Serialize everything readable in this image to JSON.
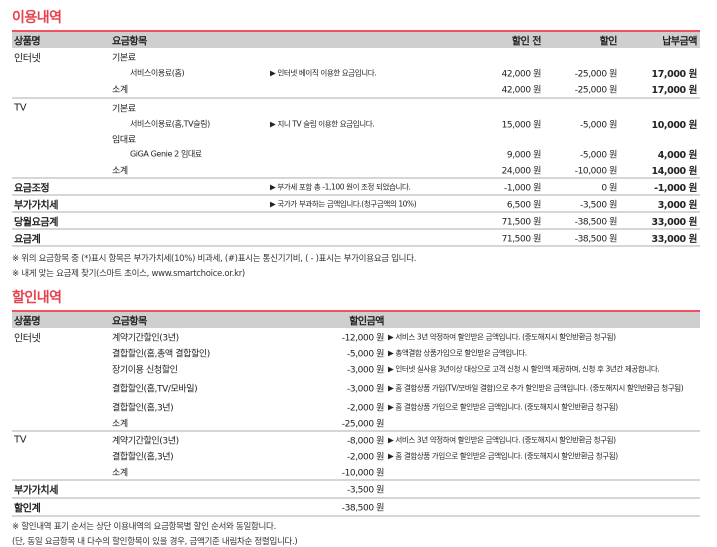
{
  "usage": {
    "title": "이용내역",
    "headers": {
      "product": "상품명",
      "item": "요금항목",
      "before": "할인 전",
      "discount": "할인",
      "pay": "납부금액"
    },
    "rows": [
      {
        "product": "인터넷",
        "item": "기본료",
        "h": 17
      },
      {
        "item": "서비스이용료(홈)",
        "indent": true,
        "desc": "▶ 인터넷 베이직 이용한 요금입니다.",
        "before": "42,000 원",
        "disc": "-25,000 원",
        "pay": "17,000 원",
        "h": 16
      },
      {
        "item": "소계",
        "before": "42,000 원",
        "disc": "-25,000 원",
        "pay": "17,000 원",
        "h": 16,
        "sep": true
      },
      {
        "product": "TV",
        "item": "기본료",
        "h": 17
      },
      {
        "item": "서비스이용료(홈,TV슬림)",
        "indent": true,
        "desc": "▶ 지니 TV 슬림 이용한 요금입니다.",
        "before": "15,000 원",
        "disc": "-5,000 원",
        "pay": "10,000 원",
        "h": 16
      },
      {
        "item": "임대료",
        "h": 14
      },
      {
        "item": "GiGA Genie 2 임대료",
        "indent": true,
        "before": "9,000 원",
        "disc": "-5,000 원",
        "pay": "4,000 원",
        "h": 16
      },
      {
        "item": "소계",
        "before": "24,000 원",
        "disc": "-10,000 원",
        "pay": "14,000 원",
        "h": 15,
        "sep": true
      },
      {
        "product": "요금조정",
        "bold": true,
        "desc": "▶ 부가세 포함 총 -1,100 원이 조정 되었습니다.",
        "before": "-1,000 원",
        "disc": "0 원",
        "pay": "-1,000 원",
        "h": 15,
        "sep": true
      },
      {
        "product": "부가가치세",
        "bold": true,
        "desc": "▶ 국가가 부과하는 금액입니다.(청구금액의 10%)",
        "before": "6,500 원",
        "disc": "-3,500 원",
        "pay": "3,000 원",
        "h": 15,
        "sep": true
      },
      {
        "product": "당월요금계",
        "bold": true,
        "before": "71,500 원",
        "disc": "-38,500 원",
        "pay": "33,000 원",
        "h": 15,
        "sep": true
      },
      {
        "product": "요금계",
        "bold": true,
        "before": "71,500 원",
        "disc": "-38,500 원",
        "pay": "33,000 원",
        "h": 15,
        "sep": true
      }
    ],
    "notes": [
      "※ 위의 요금항목 중 (*)표시 항목은 부가가치세(10%) 비과세, (#)표시는 통신기기비, ( - )표시는 부가이용요금 입니다.",
      "※ 내게 맞는 요금제 찾기(스마트 초이스, www.smartchoice.or.kr)"
    ]
  },
  "discount": {
    "title": "할인내역",
    "headers": {
      "product": "상품명",
      "item": "요금항목",
      "amount": "할인금액"
    },
    "rows": [
      {
        "product": "인터넷",
        "item": "계약기간할인(3년)",
        "amt": "-12,000 원",
        "desc": "▶ 서비스 3년 약정하여 할인받은 금액입니다. (중도해지시 할인반환금 청구됨)",
        "h": 17
      },
      {
        "item": "결합할인(홈,총액 결합할인)",
        "amt": "-5,000 원",
        "desc": "▶ 총액결합 상품가입으로 할인받은 금액입니다.",
        "h": 16
      },
      {
        "item": "장기이용 신청할인",
        "amt": "-3,000 원",
        "desc": "▶ 인터넷 실사용 3년이상 대상으로 고객 신청 시 할인액 제공하며, 신청 후 3년간 제공합니다.",
        "h": 16
      },
      {
        "item": "결합할인(홈,TV/모바일)",
        "amt": "-3,000 원",
        "desc": "▶ 홈 결합상품 가입(TV/모바일 결합)으로 추가 할인받은 금액입니다. (중도해지시 할인반환금 청구됨)",
        "h": 22
      },
      {
        "item": "결합할인(홈,3년)",
        "amt": "-2,000 원",
        "desc": "▶ 홈 결합상품 가입으로 할인받은 금액입니다. (중도해지시 할인반환금 청구됨)",
        "h": 16
      },
      {
        "item": "소계",
        "amt": "-25,000 원",
        "h": 15,
        "sep": true
      },
      {
        "product": "TV",
        "item": "계약기간할인(3년)",
        "amt": "-8,000 원",
        "desc": "▶ 서비스 3년 약정하여 할인받은 금액입니다. (중도해지시 할인반환금 청구됨)",
        "h": 16
      },
      {
        "item": "결합할인(홈,3년)",
        "amt": "-2,000 원",
        "desc": "▶ 홈 결합상품 가입으로 할인받은 금액입니다. (중도해지시 할인반환금 청구됨)",
        "h": 16
      },
      {
        "item": "소계",
        "amt": "-10,000 원",
        "h": 15,
        "sep": true
      },
      {
        "product": "부가가치세",
        "bold": true,
        "amt": "-3,500 원",
        "h": 16,
        "sep": true
      },
      {
        "product": "할인계",
        "bold": true,
        "amt": "-38,500 원",
        "h": 16,
        "sep": true
      }
    ],
    "notes": [
      "※ 할인내역 표기 순서는 상단 이용내역의 요금항목별 할인 순서와 동일합니다.",
      "(단, 동일 요금항목 내 다수의 할인항목이 있을 경우, 금액기준 내림차순 정렬입니다.)"
    ]
  }
}
